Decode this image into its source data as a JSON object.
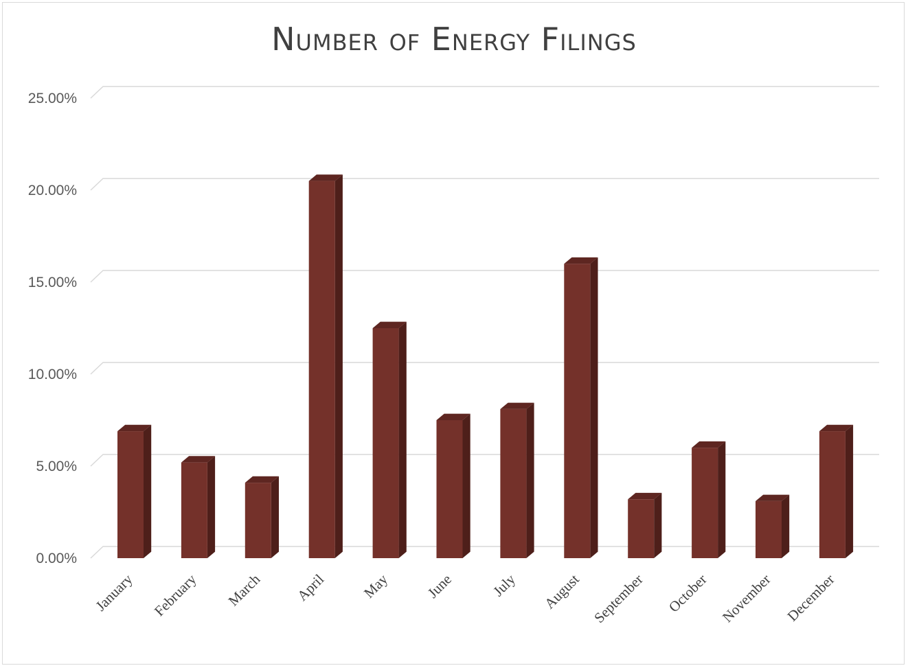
{
  "chart_data": {
    "type": "bar",
    "title": "Number of Energy Filings",
    "categories": [
      "January",
      "February",
      "March",
      "April",
      "May",
      "June",
      "July",
      "August",
      "September",
      "October",
      "November",
      "December"
    ],
    "values": [
      6.9,
      5.2,
      4.1,
      20.5,
      12.5,
      7.5,
      8.1,
      16.0,
      3.2,
      6.0,
      3.1,
      6.9
    ],
    "y_ticks": [
      "0.00%",
      "5.00%",
      "10.00%",
      "15.00%",
      "20.00%",
      "25.00%"
    ],
    "ylim": [
      0,
      25
    ],
    "grid": true,
    "bar_color": "#74312a",
    "bar_side_color": "#4e1f1a",
    "bar_top_color": "#5e2621",
    "grid_color": "#d9d9d9"
  }
}
